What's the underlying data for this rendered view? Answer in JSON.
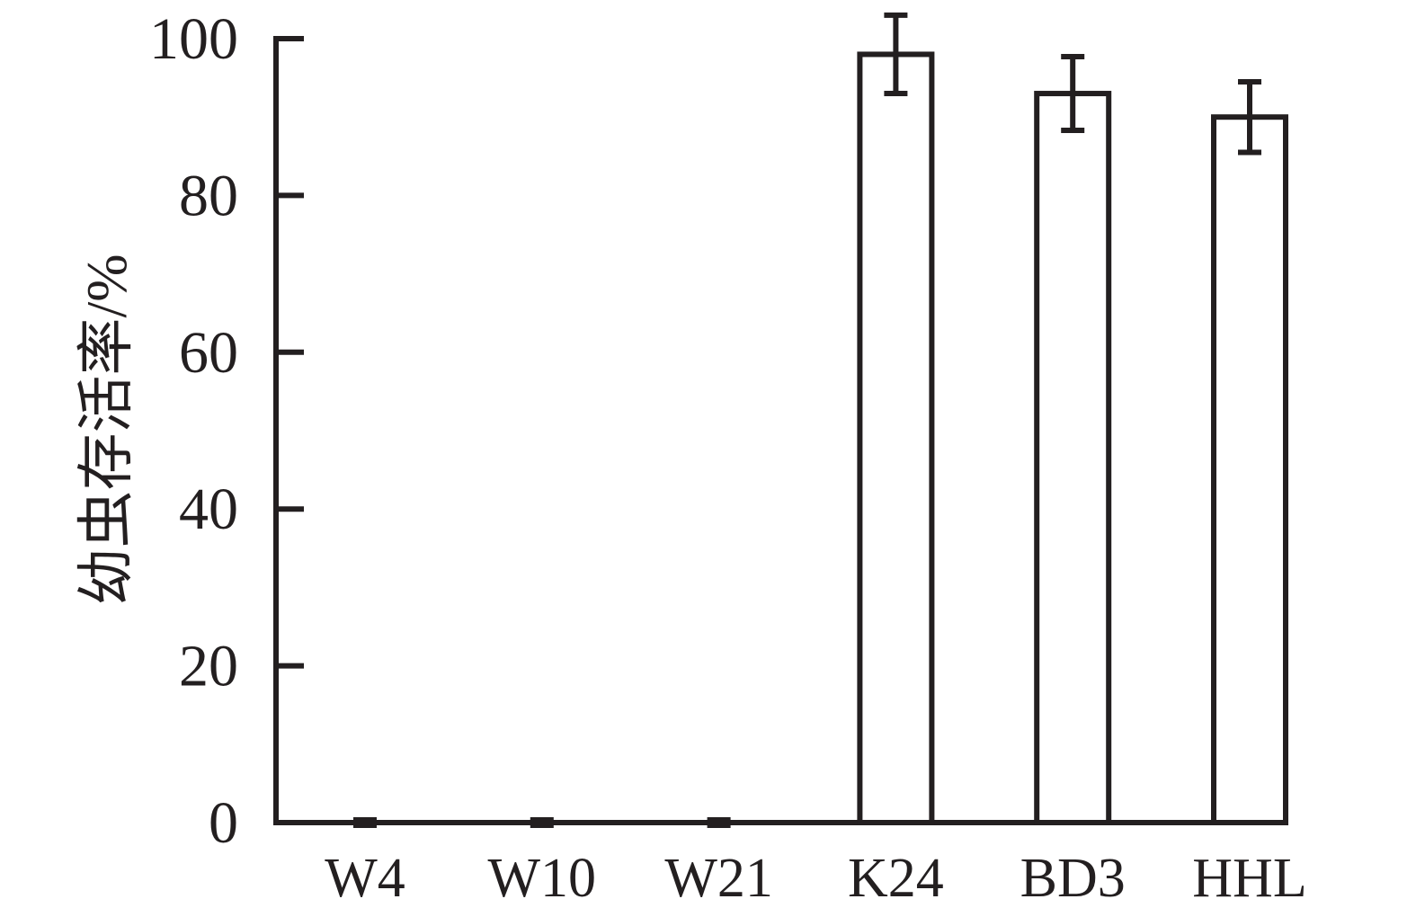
{
  "figure": {
    "background": "#ffffff",
    "ink": "#231f20"
  },
  "chart_data": {
    "type": "bar",
    "title": "",
    "xlabel": "",
    "ylabel": "幼虫存活率/%",
    "categories": [
      "W4",
      "W10",
      "W21",
      "K24",
      "BD3",
      "HHL"
    ],
    "values": [
      0,
      0,
      0,
      98,
      93,
      90
    ],
    "errors": [
      0,
      0,
      0,
      5,
      4.7,
      4.5
    ],
    "error_bars": true,
    "ylim": [
      0,
      100
    ],
    "yticks": [
      0,
      20,
      40,
      60,
      80,
      100
    ],
    "ytick_labels": [
      "0",
      "20",
      "40",
      "60",
      "80",
      "100"
    ],
    "grid": false,
    "legend": null,
    "bar_fill": "#ffffff",
    "bar_stroke": "#231f20",
    "tick_direction": "in"
  }
}
